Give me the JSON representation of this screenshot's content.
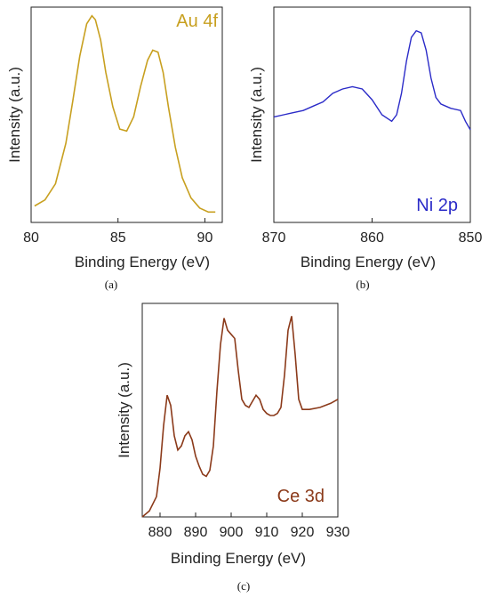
{
  "colors": {
    "au": "#C8A020",
    "ni": "#2B2BC8",
    "ce": "#8B3A1A",
    "axis": "#222222"
  },
  "captions": {
    "a": "(a)",
    "b": "(b)",
    "c": "(c)"
  },
  "chart_data": [
    {
      "type": "line",
      "panel": "a",
      "title": "Au 4f",
      "xlabel": "Binding Energy (eV)",
      "ylabel": "Intensity (a.u.)",
      "xlim": [
        80,
        91
      ],
      "ylim": [
        0,
        1
      ],
      "xticks": [
        80,
        85,
        90
      ],
      "xtick_labels": [
        "80",
        "85",
        "90"
      ],
      "series": [
        {
          "x": [
            80.2,
            80.8,
            81.4,
            82.0,
            82.4,
            82.8,
            83.2,
            83.5,
            83.7,
            84.0,
            84.3,
            84.7,
            85.1,
            85.5,
            85.9,
            86.3,
            86.7,
            87.0,
            87.3,
            87.6,
            87.9,
            88.3,
            88.7,
            89.2,
            89.7,
            90.2,
            90.6
          ],
          "y": [
            0.06,
            0.09,
            0.17,
            0.37,
            0.58,
            0.8,
            0.96,
            1.0,
            0.98,
            0.88,
            0.72,
            0.55,
            0.44,
            0.43,
            0.5,
            0.65,
            0.78,
            0.83,
            0.82,
            0.72,
            0.55,
            0.35,
            0.2,
            0.1,
            0.05,
            0.03,
            0.03
          ]
        }
      ]
    },
    {
      "type": "line",
      "panel": "b",
      "title": "Ni 2p",
      "xlabel": "Binding Energy (eV)",
      "ylabel": "Intensity (a.u.)",
      "xlim": [
        870,
        850
      ],
      "ylim": [
        0,
        1
      ],
      "xticks": [
        870,
        860,
        850
      ],
      "xtick_labels": [
        "870",
        "860",
        "850"
      ],
      "series": [
        {
          "x": [
            870,
            869,
            868,
            867,
            866,
            865,
            864,
            863,
            862,
            861,
            860,
            859,
            858,
            857.5,
            857,
            856.5,
            856,
            855.5,
            855,
            854.5,
            854,
            853.5,
            853,
            852.5,
            852,
            851,
            850.5,
            850
          ],
          "y": [
            0.49,
            0.5,
            0.51,
            0.52,
            0.54,
            0.56,
            0.6,
            0.62,
            0.63,
            0.62,
            0.57,
            0.5,
            0.47,
            0.5,
            0.6,
            0.75,
            0.86,
            0.89,
            0.88,
            0.8,
            0.67,
            0.58,
            0.55,
            0.54,
            0.53,
            0.52,
            0.47,
            0.43
          ]
        }
      ]
    },
    {
      "type": "line",
      "panel": "c",
      "title": "Ce 3d",
      "xlabel": "Binding Energy (eV)",
      "ylabel": "Intensity (a.u.)",
      "xlim": [
        875,
        930
      ],
      "ylim": [
        0,
        1
      ],
      "xticks": [
        880,
        890,
        900,
        910,
        920,
        930
      ],
      "xtick_labels": [
        "880",
        "890",
        "900",
        "910",
        "920",
        "930"
      ],
      "series": [
        {
          "x": [
            875,
            877,
            879,
            880,
            881,
            882,
            883,
            884,
            885,
            886,
            887,
            888,
            889,
            890,
            891,
            892,
            893,
            894,
            895,
            896,
            897,
            898,
            899,
            900,
            901,
            902,
            903,
            904,
            905,
            906,
            907,
            908,
            909,
            910,
            911,
            912,
            913,
            914,
            915,
            916,
            917,
            918,
            919,
            920,
            922,
            925,
            928,
            930
          ],
          "y": [
            0.0,
            0.03,
            0.1,
            0.24,
            0.45,
            0.6,
            0.55,
            0.4,
            0.33,
            0.35,
            0.4,
            0.42,
            0.38,
            0.3,
            0.25,
            0.21,
            0.2,
            0.23,
            0.35,
            0.62,
            0.85,
            0.98,
            0.92,
            0.9,
            0.88,
            0.72,
            0.58,
            0.55,
            0.54,
            0.57,
            0.6,
            0.58,
            0.53,
            0.51,
            0.5,
            0.5,
            0.51,
            0.54,
            0.7,
            0.92,
            0.99,
            0.8,
            0.58,
            0.53,
            0.53,
            0.54,
            0.56,
            0.58
          ]
        }
      ]
    }
  ]
}
